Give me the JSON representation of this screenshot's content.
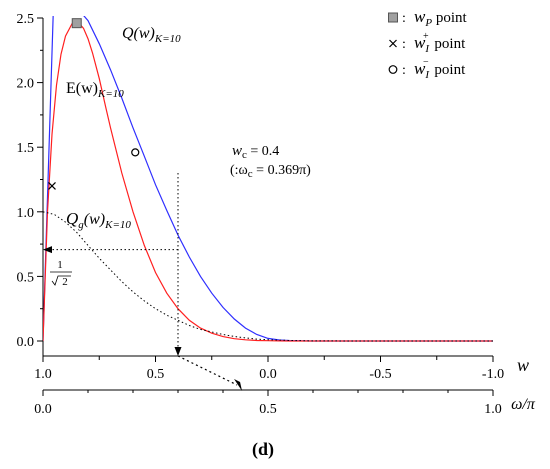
{
  "chart_data": {
    "type": "line",
    "panel_label": "(d)",
    "x_axis_w": {
      "label": "w",
      "ticks": [
        "1.0",
        "0.5",
        "0.0",
        "-0.5",
        "-1.0"
      ],
      "range": [
        1.0,
        -1.0
      ]
    },
    "x_axis_omega": {
      "label": "ω/π",
      "ticks": [
        "0.0",
        "0.5",
        "1.0"
      ],
      "range": [
        0.0,
        1.0
      ]
    },
    "y_axis": {
      "ticks": [
        "0.0",
        "0.5",
        "1.0",
        "1.5",
        "2.0",
        "2.5"
      ],
      "range": [
        0,
        2.5
      ]
    },
    "series": [
      {
        "name": "Q(w)K=10",
        "label_main": "Q(w)",
        "label_sub": "K=10",
        "color": "#2f2fff",
        "style": "solid",
        "x": [
          1.0,
          0.95,
          0.9,
          0.85,
          0.8,
          0.75,
          0.7,
          0.65,
          0.6,
          0.55,
          0.5,
          0.45,
          0.4,
          0.35,
          0.3,
          0.25,
          0.2,
          0.15,
          0.1,
          0.05,
          0.0,
          -0.05,
          -0.1,
          -0.15,
          -0.2,
          -0.3,
          -0.5,
          -1.0
        ],
        "y": [
          0.0,
          2.8,
          2.7,
          2.58,
          2.48,
          2.3,
          2.1,
          1.88,
          1.65,
          1.43,
          1.21,
          1.01,
          0.82,
          0.65,
          0.5,
          0.37,
          0.26,
          0.17,
          0.1,
          0.05,
          0.02,
          0.008,
          0.003,
          0.001,
          0.0,
          0.0,
          0.0,
          0.0
        ]
      },
      {
        "name": "E(w)K=10",
        "label_main": "E(w)",
        "label_sub": "K=10",
        "color": "#ff2020",
        "style": "solid",
        "x": [
          1.0,
          0.98,
          0.96,
          0.94,
          0.92,
          0.9,
          0.87,
          0.84,
          0.82,
          0.8,
          0.78,
          0.75,
          0.72,
          0.7,
          0.65,
          0.6,
          0.55,
          0.5,
          0.45,
          0.4,
          0.35,
          0.3,
          0.25,
          0.2,
          0.15,
          0.1,
          0.05,
          0.0,
          -0.05,
          -0.1,
          -0.2,
          -0.5,
          -1.0
        ],
        "y": [
          0.0,
          1.0,
          1.6,
          1.98,
          2.22,
          2.36,
          2.46,
          2.46,
          2.42,
          2.34,
          2.23,
          2.03,
          1.8,
          1.65,
          1.3,
          1.0,
          0.74,
          0.53,
          0.37,
          0.25,
          0.16,
          0.1,
          0.06,
          0.034,
          0.018,
          0.009,
          0.004,
          0.002,
          0.001,
          0.0,
          0.0,
          0.0,
          0.0
        ]
      },
      {
        "name": "Qg(w)K=10",
        "label_main": "Q",
        "label_g": "g",
        "label_rest": "(w)",
        "label_sub": "K=10",
        "color": "#000000",
        "style": "dotted",
        "x": [
          1.0,
          0.95,
          0.9,
          0.85,
          0.8,
          0.75,
          0.7,
          0.65,
          0.6,
          0.55,
          0.5,
          0.45,
          0.4,
          0.35,
          0.3,
          0.25,
          0.2,
          0.15,
          0.1,
          0.05,
          0.0,
          -0.1,
          -0.2,
          -0.5,
          -1.0
        ],
        "y": [
          1.0,
          0.98,
          0.92,
          0.84,
          0.74,
          0.64,
          0.55,
          0.46,
          0.38,
          0.31,
          0.25,
          0.2,
          0.16,
          0.12,
          0.09,
          0.07,
          0.05,
          0.035,
          0.024,
          0.015,
          0.01,
          0.004,
          0.001,
          0.0,
          0.0
        ]
      }
    ],
    "markers": [
      {
        "kind": "square",
        "x": 0.85,
        "y": 2.46
      },
      {
        "kind": "cross",
        "x": 0.96,
        "y": 1.2
      },
      {
        "kind": "circle",
        "x": 0.59,
        "y": 1.46
      }
    ],
    "legend": {
      "position": "top-right",
      "items": [
        {
          "symbol": "square",
          "var": "w",
          "sub": "P",
          "sup": "",
          "text": "point"
        },
        {
          "symbol": "cross",
          "var": "w",
          "sub": "I",
          "sup": "+",
          "text": "point"
        },
        {
          "symbol": "circle",
          "var": "w",
          "sub": "I",
          "sup": "−",
          "text": "point"
        }
      ]
    },
    "annotations": {
      "wc_value_line": "w",
      "wc_value_sub": "c",
      "wc_value_rest": " = 0.4",
      "omega_c_open": "(:ω",
      "omega_c_sub": "c",
      "omega_c_rest": " = 0.369π)",
      "wc": 0.4,
      "half_power_level": 0.707,
      "half_power_label_num": "1",
      "half_power_label_den": "2"
    }
  }
}
